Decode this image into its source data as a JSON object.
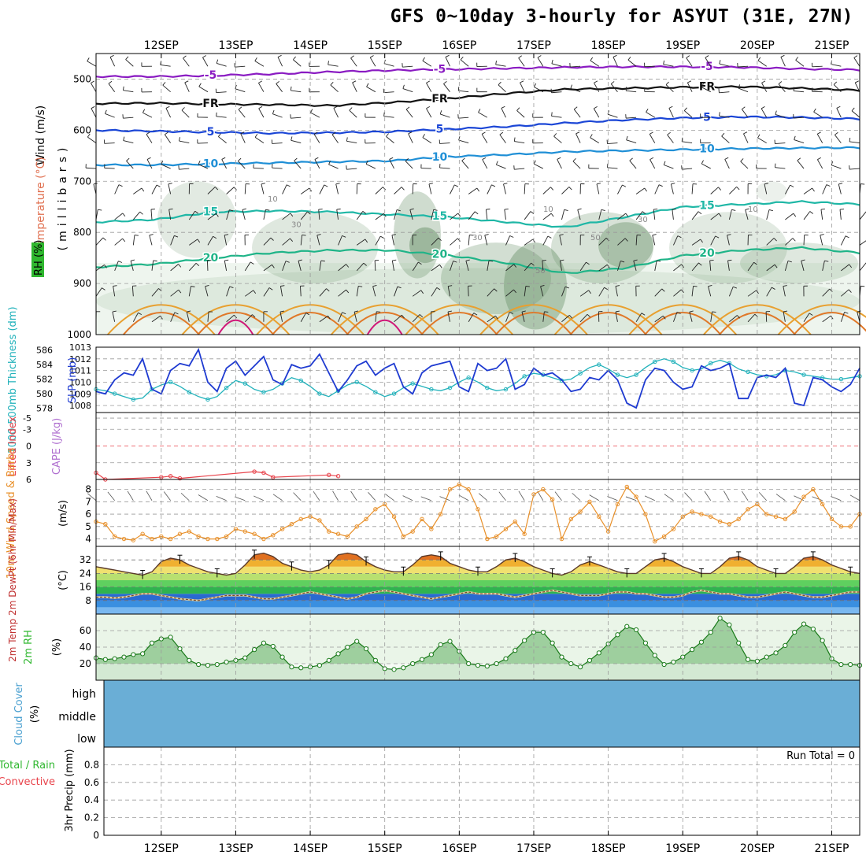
{
  "chart_data": {
    "type": "meteogram",
    "title": "GFS 0~10day 3-hourly for ASYUT (31E, 27N)",
    "date_labels": [
      "12SEP",
      "13SEP",
      "14SEP",
      "15SEP",
      "16SEP",
      "17SEP",
      "18SEP",
      "19SEP",
      "20SEP",
      "21SEP"
    ],
    "time_step_hours": 3,
    "panels": {
      "upper": {
        "ylabel_parts": [
          "RH (%)",
          "Temperature (°C)",
          "Wind (m/s)"
        ],
        "ylabel_unit": "(millibars)",
        "yticks": [
          500,
          600,
          700,
          800,
          900,
          1000
        ],
        "ylim": [
          450,
          1000
        ],
        "isotherms": [
          {
            "label": "-5",
            "p": [
              495,
              495,
              493,
              490,
              486,
              483,
              481,
              479,
              477,
              476,
              476,
              477,
              480,
              482
            ]
          },
          {
            "label": "FR",
            "p": [
              548,
              547,
              549,
              550,
              552,
              546,
              538,
              528,
              520,
              518,
              516,
              515,
              518,
              522
            ]
          },
          {
            "label": "5",
            "p": [
              600,
              602,
              604,
              606,
              605,
              603,
              598,
              593,
              586,
              580,
              576,
              574,
              575,
              578
            ]
          },
          {
            "label": "10",
            "p": [
              668,
              668,
              666,
              664,
              662,
              660,
              652,
              648,
              642,
              640,
              638,
              636,
              635,
              634
            ]
          },
          {
            "label": "15",
            "p": [
              780,
              775,
              760,
              758,
              760,
              765,
              770,
              780,
              790,
              770,
              750,
              745,
              740,
              745
            ]
          },
          {
            "label": "20",
            "p": [
              868,
              862,
              850,
              840,
              835,
              835,
              845,
              860,
              880,
              870,
              845,
              835,
              830,
              840
            ]
          }
        ],
        "rh_contour_labels": [
          "10",
          "30",
          "50"
        ]
      },
      "pressure": {
        "ylabel_left": "1000-500mb Thickness (dm)",
        "ylabel_right": "SLP (mb)",
        "thickness_ticks": [
          578,
          580,
          582,
          584,
          586
        ],
        "slp_ticks": [
          1008,
          1009,
          1010,
          1011,
          1012,
          1013
        ],
        "slp": [
          1009.2,
          1009.0,
          1010.2,
          1010.8,
          1010.6,
          1012.0,
          1009.4,
          1009.0,
          1011.0,
          1011.6,
          1011.4,
          1012.8,
          1010.0,
          1009.2,
          1011.2,
          1011.8,
          1010.6,
          1011.4,
          1012.2,
          1010.2,
          1009.8,
          1011.5,
          1011.2,
          1011.4,
          1012.4,
          1010.8,
          1009.2,
          1010.2,
          1011.4,
          1011.8,
          1010.6,
          1011.2,
          1011.6,
          1009.6,
          1009.0,
          1010.8,
          1011.4,
          1011.6,
          1011.8,
          1009.6,
          1009.2,
          1011.6,
          1011.0,
          1011.2,
          1012.0,
          1009.4,
          1009.8,
          1011.2,
          1010.6,
          1010.8,
          1010.2,
          1009.2,
          1009.4,
          1010.4,
          1010.2,
          1011.0,
          1010.2,
          1008.2,
          1007.8,
          1010.2,
          1011.2,
          1011.0,
          1010.0,
          1009.4,
          1009.6,
          1011.4,
          1011.0,
          1011.2,
          1011.6,
          1008.6,
          1008.6,
          1010.4,
          1010.6,
          1010.4,
          1011.2,
          1008.2,
          1008.0,
          1010.4,
          1010.2,
          1009.6,
          1009.2,
          1009.8,
          1011.2
        ],
        "thickness": [
          580.6,
          580.4,
          580.0,
          579.6,
          579.2,
          579.4,
          580.6,
          581.2,
          581.6,
          581.0,
          580.2,
          579.6,
          579.2,
          579.6,
          580.8,
          581.8,
          581.4,
          580.6,
          580.2,
          580.6,
          581.4,
          582.2,
          581.8,
          581.0,
          580.0,
          579.6,
          580.4,
          581.2,
          581.6,
          581.0,
          580.2,
          579.6,
          580.0,
          580.8,
          581.4,
          581.0,
          580.6,
          580.4,
          580.8,
          581.6,
          582.2,
          581.6,
          580.8,
          580.4,
          580.6,
          581.4,
          582.4,
          582.8,
          582.6,
          582.2,
          581.8,
          582.0,
          582.8,
          583.6,
          584.0,
          583.4,
          582.6,
          582.2,
          582.6,
          583.6,
          584.4,
          584.8,
          584.4,
          583.6,
          583.2,
          583.4,
          584.2,
          584.6,
          584.2,
          583.4,
          583.0,
          582.6,
          582.4,
          582.6,
          583.2,
          583.0,
          582.6,
          582.4,
          582.2,
          582.0,
          582.0,
          582.2,
          582.4
        ]
      },
      "stability": {
        "ylabel_left": "Lifted Index",
        "ylabel_right": "CAPE (J/kg)",
        "yticks": [
          -5,
          -3,
          0,
          3,
          6
        ],
        "lifted_index_points": [
          [
            0,
            4.8
          ],
          [
            1,
            6
          ],
          [
            7,
            5.6
          ],
          [
            8,
            5.4
          ],
          [
            9,
            5.8
          ],
          [
            17,
            4.6
          ],
          [
            18,
            4.8
          ],
          [
            19,
            5.6
          ],
          [
            25,
            5.2
          ],
          [
            26,
            5.4
          ]
        ]
      },
      "wind10m": {
        "ylabel": "10m Wind Speed & Barbs",
        "unit": "(m/s)",
        "yticks": [
          4,
          5,
          6,
          7,
          8
        ],
        "speed": [
          5.4,
          5.2,
          4.2,
          4.0,
          3.9,
          4.4,
          4.0,
          4.2,
          4.0,
          4.4,
          4.6,
          4.2,
          4.0,
          4.0,
          4.2,
          4.8,
          4.6,
          4.4,
          4.0,
          4.3,
          4.8,
          5.2,
          5.6,
          5.8,
          5.5,
          4.6,
          4.4,
          4.2,
          5.0,
          5.6,
          6.4,
          6.8,
          5.8,
          4.2,
          4.6,
          5.6,
          4.8,
          6.0,
          8.0,
          8.4,
          8.0,
          6.4,
          4.0,
          4.2,
          4.8,
          5.4,
          4.4,
          7.6,
          8.0,
          7.2,
          4.0,
          5.6,
          6.2,
          7.0,
          5.8,
          4.6,
          6.8,
          8.2,
          7.4,
          6.0,
          3.8,
          4.2,
          4.8,
          5.8,
          6.2,
          6.0,
          5.8,
          5.4,
          5.2,
          5.6,
          6.4,
          6.8,
          6.0,
          5.8,
          5.6,
          6.2,
          7.4,
          8.0,
          6.8,
          5.6,
          5.0,
          5.0,
          6.0
        ]
      },
      "temp2m": {
        "ylabel": "2m Temp 2m DewPt (6hr Min/Max)",
        "unit": "(°C)",
        "yticks": [
          8,
          16,
          24,
          32
        ],
        "ylim": [
          0,
          40
        ],
        "temp": [
          28,
          27,
          26,
          25,
          24,
          23,
          25,
          31,
          33,
          32,
          29,
          27,
          25,
          24,
          23,
          24,
          29,
          35,
          36,
          34,
          30,
          28,
          26,
          25,
          26,
          29,
          35,
          36,
          35,
          31,
          28,
          26,
          25,
          25,
          29,
          34,
          35,
          34,
          30,
          28,
          26,
          25,
          25,
          28,
          32,
          33,
          31,
          28,
          26,
          24,
          23,
          25,
          29,
          31,
          29,
          27,
          25,
          24,
          24,
          28,
          32,
          33,
          31,
          28,
          26,
          24,
          24,
          28,
          33,
          34,
          32,
          28,
          26,
          24,
          24,
          28,
          33,
          34,
          32,
          29,
          27,
          25,
          24
        ],
        "dewpt": [
          10,
          10,
          9.5,
          10,
          11,
          12,
          12,
          11,
          10,
          9,
          8.5,
          8,
          9,
          10,
          11,
          11,
          11,
          10,
          9,
          9,
          10,
          11,
          12,
          13,
          12,
          11,
          10,
          9,
          10,
          12,
          13,
          14,
          13,
          12,
          11,
          10,
          9,
          10,
          11,
          12,
          13,
          12,
          12,
          12,
          11,
          10,
          11,
          12,
          13,
          14,
          13,
          12,
          11,
          11,
          11,
          12,
          13,
          13,
          12,
          12,
          11,
          10,
          10,
          11,
          13,
          14,
          13,
          12,
          12,
          11,
          10,
          10,
          11,
          12,
          13,
          12,
          11,
          10,
          10,
          11,
          12,
          13,
          13
        ]
      },
      "rh2m": {
        "ylabel": "2m RH",
        "unit": "(%)",
        "yticks": [
          20,
          40,
          60
        ],
        "values": [
          27,
          25,
          26,
          28,
          31,
          32,
          45,
          50,
          52,
          38,
          24,
          19,
          18,
          19,
          22,
          24,
          27,
          37,
          45,
          41,
          28,
          16,
          15,
          16,
          18,
          24,
          32,
          40,
          47,
          38,
          24,
          14,
          13,
          15,
          20,
          25,
          31,
          43,
          47,
          35,
          20,
          18,
          17,
          20,
          26,
          36,
          48,
          58,
          58,
          45,
          28,
          20,
          16,
          24,
          33,
          44,
          55,
          65,
          61,
          45,
          30,
          19,
          22,
          28,
          37,
          46,
          58,
          75,
          67,
          45,
          25,
          23,
          28,
          33,
          42,
          58,
          68,
          62,
          48,
          26,
          19,
          19,
          18
        ]
      },
      "cloud": {
        "ylabel": "Cloud Cover",
        "unit": "(%)",
        "levels": [
          "high",
          "middle",
          "low"
        ]
      },
      "precip": {
        "ylabel_left": "Total / Rain Convective",
        "ylabel_right": "3hr Precip (mm)",
        "yticks": [
          0,
          0.2,
          0.4,
          0.6,
          0.8
        ],
        "run_total_label": "Run Total = 0"
      }
    }
  },
  "colors": {
    "background": "#ffffff",
    "grid": "#9a9a9a",
    "slp": "#1f3bd1",
    "thickness": "#22b2bb",
    "lifted_index": "#e8434b",
    "wind_speed": "#e8902a",
    "dewpoint": "#7a4a2a",
    "rh": "#2fb72f",
    "cloud": "#6aaed6",
    "iso_neg": "#8a1bc2",
    "iso_fr": "#111111",
    "iso_5": "#1b46d6",
    "iso_10": "#1f8fd6",
    "iso_15": "#1fb7a6",
    "iso_20": "#1fb488"
  }
}
